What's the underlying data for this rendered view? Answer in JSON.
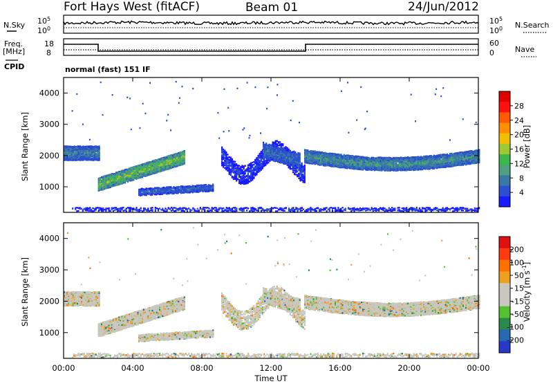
{
  "header": {
    "station": "Fort Hays West (fitACF)",
    "beam": "Beam 01",
    "date": "24/Jun/2012"
  },
  "noise_panel": {
    "left_label": "N.Sky",
    "right_label": "N.Search",
    "left_ticks": [
      "10^5",
      "10^0"
    ],
    "right_ticks": [
      "10^5",
      "10^0"
    ]
  },
  "freq_panel": {
    "left_label_line1": "Freq.",
    "left_label_line2": "[MHz]",
    "left_ticks": [
      "18",
      "8"
    ],
    "right_label": "Nave",
    "right_ticks": [
      "60",
      "0"
    ]
  },
  "cpid": {
    "label": "CPID",
    "mode": "normal (fast) 151 IF"
  },
  "chart_data": [
    {
      "type": "heatmap",
      "ylabel": "Slant Range [km]",
      "xlabel": "",
      "x_ticks": [
        "00:00",
        "04:00",
        "08:00",
        "12:00",
        "16:00",
        "20:00",
        "00:00"
      ],
      "y_ticks": [
        1000,
        2000,
        3000,
        4000
      ],
      "ylim": [
        180,
        4500
      ],
      "colorbar": {
        "label": "Power [dB]",
        "ticks": [
          4,
          8,
          12,
          16,
          20,
          24,
          28
        ],
        "colors": [
          "#1a1aff",
          "#2a4fd0",
          "#3a78a8",
          "#4ea080",
          "#3cb84a",
          "#a0c830",
          "#f0c000",
          "#ff9000",
          "#ff5a00",
          "#ff1010",
          "#e00000"
        ]
      }
    },
    {
      "type": "heatmap",
      "ylabel": "Slant Range [km]",
      "xlabel": "Time UT",
      "x_ticks": [
        "00:00",
        "04:00",
        "08:00",
        "12:00",
        "16:00",
        "20:00",
        "00:00"
      ],
      "y_ticks": [
        1000,
        2000,
        3000,
        4000
      ],
      "ylim": [
        180,
        4500
      ],
      "colorbar": {
        "label": "Velocity [m s^-1]",
        "ticks": [
          200,
          100,
          50,
          15,
          -15,
          -50,
          -100,
          -200
        ],
        "colors": [
          "#2838c8",
          "#2868b0",
          "#2a8a4a",
          "#55c030",
          "#c8c8c0",
          "#c8c8c0",
          "#f0a020",
          "#ff7000",
          "#ff3a10",
          "#e01010"
        ]
      }
    }
  ]
}
